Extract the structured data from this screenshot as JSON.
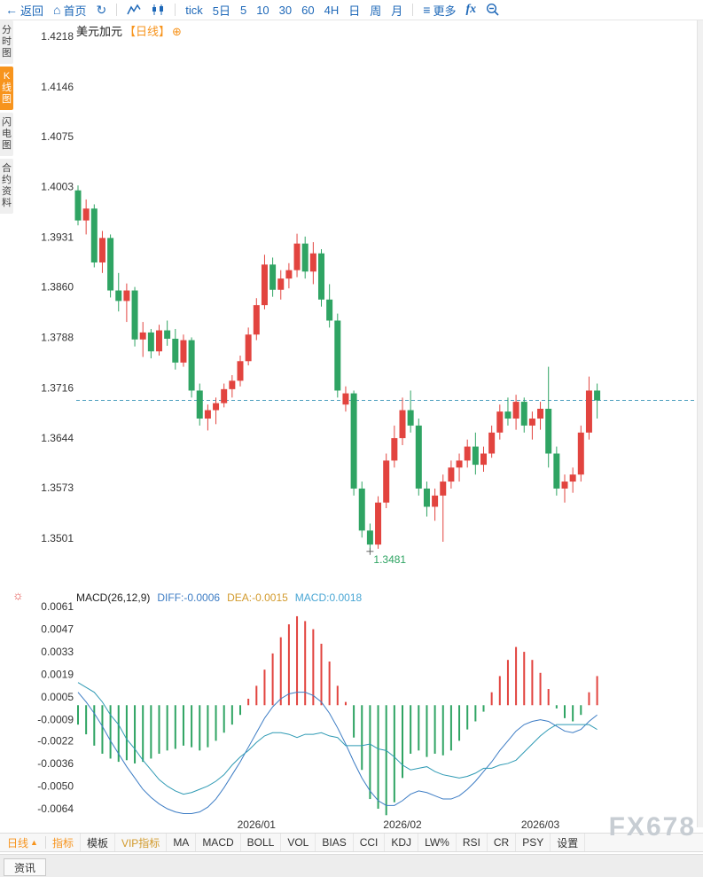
{
  "topbar": {
    "back": "返回",
    "home": "首页",
    "periods": [
      "tick",
      "5日",
      "5",
      "10",
      "30",
      "60",
      "4H",
      "日",
      "周",
      "月"
    ],
    "more": "更多",
    "fx": "fx"
  },
  "icons": {
    "back": "←",
    "home": "⌂",
    "refresh": "↻",
    "menu": "≡",
    "plus_circle": "⊕",
    "gear": "☼",
    "up_arrow": "▲"
  },
  "side_tabs": {
    "items": [
      {
        "label": "分时图",
        "active": false
      },
      {
        "label": "K线图",
        "active": true
      },
      {
        "label": "闪电图",
        "active": false
      },
      {
        "label": "合约资料",
        "active": false
      }
    ]
  },
  "chart_header": {
    "symbol": "美元加元",
    "period_tag": "【日线】"
  },
  "macd_header": {
    "name": "MACD(26,12,9)",
    "diff": "DIFF:-0.0006",
    "dea": "DEA:-0.0015",
    "macd": "MACD:0.0018"
  },
  "bottom_bar": {
    "period": "日线",
    "tabs": [
      {
        "label": "指标",
        "style": "active"
      },
      {
        "label": "模板",
        "style": ""
      },
      {
        "label": "VIP指标",
        "style": "vip"
      },
      {
        "label": "MA",
        "style": ""
      },
      {
        "label": "MACD",
        "style": ""
      },
      {
        "label": "BOLL",
        "style": ""
      },
      {
        "label": "VOL",
        "style": ""
      },
      {
        "label": "BIAS",
        "style": ""
      },
      {
        "label": "CCI",
        "style": ""
      },
      {
        "label": "KDJ",
        "style": ""
      },
      {
        "label": "LW%",
        "style": ""
      },
      {
        "label": "RSI",
        "style": ""
      },
      {
        "label": "CR",
        "style": ""
      },
      {
        "label": "PSY",
        "style": ""
      },
      {
        "label": "设置",
        "style": ""
      }
    ]
  },
  "news_tab": "资讯",
  "watermark": "FX678",
  "colors": {
    "up": "#e2443f",
    "down": "#2fa463",
    "accent_blue": "#1e68b8",
    "orange": "#f7941d",
    "diff_line": "#3c7cc4",
    "dea_line": "#2f9ab4",
    "dashed": "#4a9ebd",
    "axis_text": "#333333"
  },
  "chart_data": {
    "type": "candlestick",
    "title": "美元加元【日线】",
    "price_axis": [
      1.4218,
      1.4146,
      1.4075,
      1.4003,
      1.3931,
      1.386,
      1.3788,
      1.3716,
      1.3644,
      1.3573,
      1.3501
    ],
    "x_labels": [
      {
        "label": "2026/01",
        "index": 22
      },
      {
        "label": "2026/02",
        "index": 40
      },
      {
        "label": "2026/03",
        "index": 57
      }
    ],
    "current_price": 1.3698,
    "low_marker": {
      "value": 1.3481,
      "label": "1.3481",
      "index": 36
    },
    "candles": [
      [
        1.3998,
        1.4005,
        1.3948,
        1.3955
      ],
      [
        1.3955,
        1.3985,
        1.3935,
        1.3972
      ],
      [
        1.3972,
        1.3978,
        1.3888,
        1.3895
      ],
      [
        1.3895,
        1.394,
        1.388,
        1.393
      ],
      [
        1.393,
        1.3935,
        1.3845,
        1.3855
      ],
      [
        1.3855,
        1.388,
        1.3825,
        1.384
      ],
      [
        1.384,
        1.3865,
        1.381,
        1.3855
      ],
      [
        1.3855,
        1.386,
        1.3775,
        1.3785
      ],
      [
        1.3785,
        1.381,
        1.376,
        1.3795
      ],
      [
        1.3795,
        1.38,
        1.3758,
        1.3768
      ],
      [
        1.3768,
        1.3806,
        1.3762,
        1.3798
      ],
      [
        1.3798,
        1.3812,
        1.3776,
        1.3786
      ],
      [
        1.3786,
        1.38,
        1.3742,
        1.3752
      ],
      [
        1.3752,
        1.3792,
        1.3746,
        1.3784
      ],
      [
        1.3784,
        1.3788,
        1.3702,
        1.3712
      ],
      [
        1.3712,
        1.3722,
        1.3662,
        1.3672
      ],
      [
        1.3672,
        1.3692,
        1.3655,
        1.3684
      ],
      [
        1.3684,
        1.3702,
        1.3664,
        1.3694
      ],
      [
        1.3694,
        1.3722,
        1.3688,
        1.3714
      ],
      [
        1.3714,
        1.3734,
        1.3702,
        1.3726
      ],
      [
        1.3726,
        1.3762,
        1.3718,
        1.3754
      ],
      [
        1.3754,
        1.3802,
        1.3748,
        1.3792
      ],
      [
        1.3792,
        1.3844,
        1.3784,
        1.3834
      ],
      [
        1.3834,
        1.3906,
        1.3828,
        1.3892
      ],
      [
        1.3892,
        1.3902,
        1.3846,
        1.3856
      ],
      [
        1.3856,
        1.3884,
        1.3842,
        1.3872
      ],
      [
        1.3872,
        1.3894,
        1.3858,
        1.3884
      ],
      [
        1.3884,
        1.3936,
        1.3874,
        1.3922
      ],
      [
        1.3922,
        1.3932,
        1.3872,
        1.3882
      ],
      [
        1.3882,
        1.3924,
        1.3864,
        1.3908
      ],
      [
        1.3908,
        1.3914,
        1.3832,
        1.3842
      ],
      [
        1.3842,
        1.3864,
        1.3802,
        1.3812
      ],
      [
        1.3812,
        1.3822,
        1.3702,
        1.3712
      ],
      [
        1.3692,
        1.3718,
        1.3682,
        1.3708
      ],
      [
        1.3708,
        1.3712,
        1.3562,
        1.3572
      ],
      [
        1.3572,
        1.3582,
        1.3502,
        1.3512
      ],
      [
        1.3512,
        1.3522,
        1.3481,
        1.3492
      ],
      [
        1.3492,
        1.3561,
        1.3486,
        1.3552
      ],
      [
        1.3552,
        1.3622,
        1.3544,
        1.3612
      ],
      [
        1.3612,
        1.3662,
        1.3602,
        1.3644
      ],
      [
        1.3644,
        1.3702,
        1.3634,
        1.3684
      ],
      [
        1.3684,
        1.3712,
        1.3652,
        1.3662
      ],
      [
        1.3662,
        1.3672,
        1.3562,
        1.3572
      ],
      [
        1.3572,
        1.3582,
        1.3532,
        1.3546
      ],
      [
        1.3546,
        1.3572,
        1.3526,
        1.3562
      ],
      [
        1.3562,
        1.3592,
        1.3496,
        1.3582
      ],
      [
        1.3582,
        1.3612,
        1.3572,
        1.3602
      ],
      [
        1.3602,
        1.3622,
        1.3582,
        1.3612
      ],
      [
        1.3612,
        1.3642,
        1.3602,
        1.3632
      ],
      [
        1.3632,
        1.3652,
        1.3592,
        1.3606
      ],
      [
        1.3606,
        1.3632,
        1.3596,
        1.3622
      ],
      [
        1.3622,
        1.3662,
        1.3616,
        1.3652
      ],
      [
        1.3652,
        1.3692,
        1.3642,
        1.3682
      ],
      [
        1.3682,
        1.3702,
        1.3662,
        1.3672
      ],
      [
        1.3672,
        1.3706,
        1.3656,
        1.3696
      ],
      [
        1.3696,
        1.3702,
        1.3652,
        1.3662
      ],
      [
        1.3662,
        1.3682,
        1.3642,
        1.3672
      ],
      [
        1.3672,
        1.3696,
        1.3656,
        1.3686
      ],
      [
        1.3686,
        1.3746,
        1.3602,
        1.3622
      ],
      [
        1.3622,
        1.3632,
        1.3562,
        1.3572
      ],
      [
        1.3572,
        1.3592,
        1.3552,
        1.3582
      ],
      [
        1.3582,
        1.3602,
        1.3566,
        1.3592
      ],
      [
        1.3592,
        1.3662,
        1.3582,
        1.3652
      ],
      [
        1.3652,
        1.3732,
        1.3642,
        1.3712
      ],
      [
        1.3712,
        1.3722,
        1.3672,
        1.3698
      ]
    ],
    "macd": {
      "params": "(26,12,9)",
      "axis": [
        0.0061,
        0.0047,
        0.0033,
        0.0019,
        0.0005,
        -0.0009,
        -0.0022,
        -0.0036,
        -0.005,
        -0.0064
      ],
      "hist": [
        -0.0012,
        -0.0018,
        -0.0025,
        -0.003,
        -0.0033,
        -0.0035,
        -0.0034,
        -0.0036,
        -0.0035,
        -0.0033,
        -0.003,
        -0.0028,
        -0.0027,
        -0.0025,
        -0.0026,
        -0.0028,
        -0.0026,
        -0.0022,
        -0.0017,
        -0.0012,
        -0.0006,
        0.0004,
        0.0012,
        0.0022,
        0.0032,
        0.0042,
        0.005,
        0.0055,
        0.0052,
        0.0047,
        0.0038,
        0.0027,
        0.0012,
        0.0002,
        -0.002,
        -0.004,
        -0.0058,
        -0.0064,
        -0.0068,
        -0.006,
        -0.0045,
        -0.003,
        -0.0028,
        -0.0032,
        -0.003,
        -0.0031,
        -0.0028,
        -0.0022,
        -0.0015,
        -0.001,
        -0.0004,
        0.0008,
        0.0018,
        0.0028,
        0.0036,
        0.0033,
        0.0028,
        0.002,
        0.001,
        -0.0002,
        -0.0008,
        -0.001,
        -0.0006,
        0.0008,
        0.0018
      ],
      "diff": [
        0.0008,
        0.0002,
        -0.0005,
        -0.0013,
        -0.0022,
        -0.003,
        -0.0038,
        -0.0045,
        -0.0052,
        -0.0057,
        -0.0061,
        -0.0064,
        -0.0066,
        -0.0067,
        -0.0067,
        -0.0066,
        -0.0063,
        -0.0058,
        -0.0051,
        -0.0043,
        -0.0035,
        -0.0026,
        -0.0017,
        -0.0008,
        -0.0001,
        0.0004,
        0.0007,
        0.0008,
        0.0008,
        0.0006,
        0.0002,
        -0.0005,
        -0.0014,
        -0.0024,
        -0.0035,
        -0.0045,
        -0.0053,
        -0.0059,
        -0.0062,
        -0.0062,
        -0.0059,
        -0.0055,
        -0.0053,
        -0.0054,
        -0.0056,
        -0.0058,
        -0.0058,
        -0.0056,
        -0.0052,
        -0.0047,
        -0.0041,
        -0.0035,
        -0.0028,
        -0.0022,
        -0.0016,
        -0.0012,
        -0.001,
        -0.0009,
        -0.001,
        -0.0013,
        -0.0016,
        -0.0017,
        -0.0015,
        -0.001,
        -0.0006
      ],
      "dea": [
        0.0014,
        0.0011,
        0.0008,
        0.0002,
        -0.0006,
        -0.0012,
        -0.0021,
        -0.0027,
        -0.0034,
        -0.004,
        -0.0046,
        -0.005,
        -0.0053,
        -0.0055,
        -0.0054,
        -0.0052,
        -0.005,
        -0.0047,
        -0.0043,
        -0.0037,
        -0.0032,
        -0.0028,
        -0.0023,
        -0.0019,
        -0.0017,
        -0.0017,
        -0.0018,
        -0.002,
        -0.0018,
        -0.0018,
        -0.0017,
        -0.0019,
        -0.002,
        -0.0025,
        -0.0025,
        -0.0025,
        -0.0024,
        -0.0027,
        -0.0028,
        -0.0032,
        -0.0037,
        -0.004,
        -0.0039,
        -0.0038,
        -0.0041,
        -0.0043,
        -0.0044,
        -0.0045,
        -0.0044,
        -0.0042,
        -0.0039,
        -0.0039,
        -0.0037,
        -0.0036,
        -0.0034,
        -0.0029,
        -0.0024,
        -0.0019,
        -0.0015,
        -0.0012,
        -0.0012,
        -0.0012,
        -0.0012,
        -0.0012,
        -0.0015
      ],
      "last": {
        "diff": -0.0006,
        "dea": -0.0015,
        "macd": 0.0018
      }
    }
  }
}
